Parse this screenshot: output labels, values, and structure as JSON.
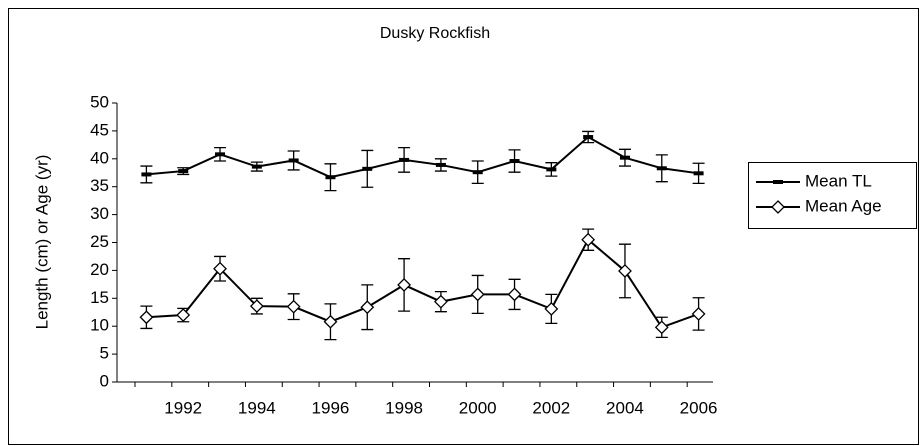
{
  "chart_data": {
    "type": "line",
    "title": "Dusky Rockfish",
    "y_label": "Length (cm) or Age (yr)",
    "categories": [
      null,
      "1992",
      null,
      "1994",
      null,
      "1996",
      null,
      "1998",
      null,
      "2000",
      null,
      "2002",
      null,
      "2004",
      null,
      "2006"
    ],
    "series": [
      {
        "name": "Mean TL",
        "color": "#000000",
        "marker": "dash",
        "values": [
          37.2,
          37.8,
          40.8,
          38.6,
          39.7,
          36.7,
          38.2,
          39.8,
          38.9,
          37.6,
          39.6,
          38.1,
          43.9,
          40.2,
          38.3,
          37.4
        ],
        "errors": [
          1.5,
          0.6,
          1.2,
          0.8,
          1.7,
          2.4,
          3.3,
          2.2,
          1.1,
          2.0,
          2.0,
          1.2,
          1.0,
          1.5,
          2.4,
          1.8
        ]
      },
      {
        "name": "Mean Age",
        "color": "#000000",
        "marker": "diamond",
        "values": [
          11.6,
          12.0,
          20.3,
          13.6,
          13.5,
          10.8,
          13.4,
          17.4,
          14.4,
          15.7,
          15.7,
          13.1,
          25.5,
          19.9,
          9.8,
          12.2
        ],
        "errors": [
          2.0,
          1.2,
          2.2,
          1.4,
          2.3,
          3.2,
          4.0,
          4.7,
          1.8,
          3.4,
          2.7,
          2.6,
          1.9,
          4.8,
          1.8,
          2.9
        ]
      }
    ],
    "ylim": [
      0,
      50
    ],
    "yticks": [
      0,
      5,
      10,
      15,
      20,
      25,
      30,
      35,
      40,
      45,
      50
    ],
    "grid": false,
    "legend": "right"
  }
}
